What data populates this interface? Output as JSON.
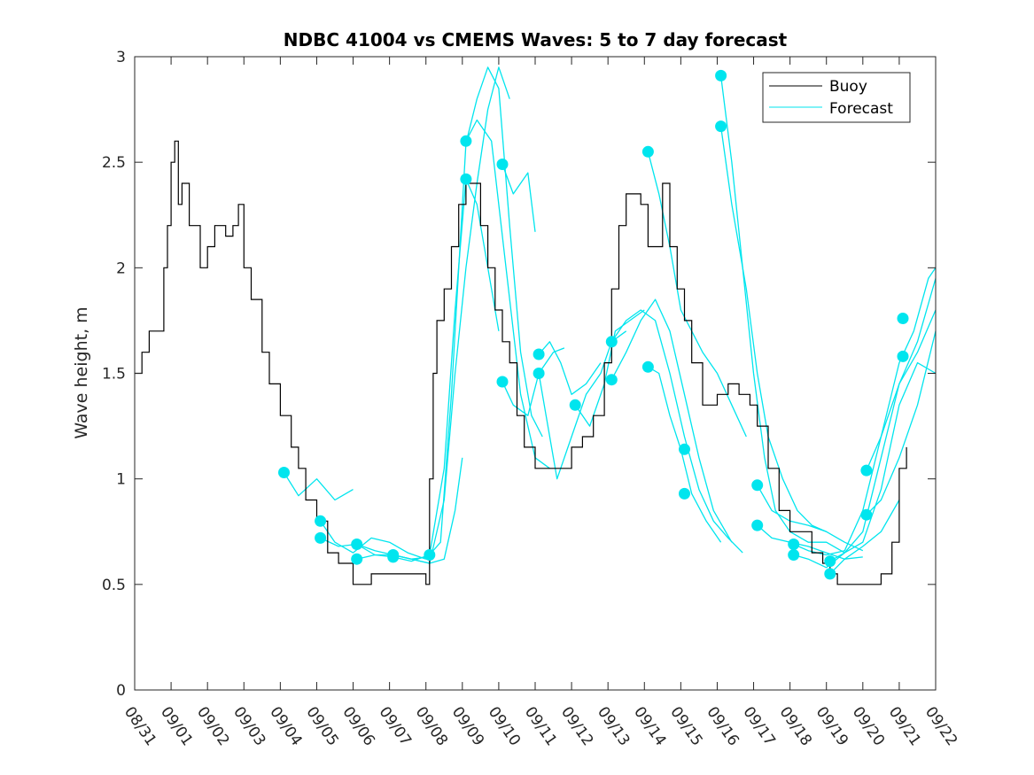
{
  "chart_data": {
    "type": "line",
    "title": "NDBC 41004 vs CMEMS Waves: 5 to 7 day forecast",
    "xlabel": "",
    "ylabel": "Wave height, m",
    "xlim": [
      0,
      22
    ],
    "ylim": [
      0,
      3
    ],
    "yticks": [
      0,
      0.5,
      1,
      1.5,
      2,
      2.5,
      3
    ],
    "ytick_labels": [
      "0",
      "0.5",
      "1",
      "1.5",
      "2",
      "2.5",
      "3"
    ],
    "xticks": [
      0,
      1,
      2,
      3,
      4,
      5,
      6,
      7,
      8,
      9,
      10,
      11,
      12,
      13,
      14,
      15,
      16,
      17,
      18,
      19,
      20,
      21,
      22
    ],
    "xtick_labels": [
      "08/31",
      "09/01",
      "09/02",
      "09/03",
      "09/04",
      "09/05",
      "09/06",
      "09/07",
      "09/08",
      "09/09",
      "09/10",
      "09/11",
      "09/12",
      "09/13",
      "09/14",
      "09/15",
      "09/16",
      "09/17",
      "09/18",
      "09/19",
      "09/20",
      "09/21",
      "09/22"
    ],
    "legend": {
      "position": "top-right",
      "entries": [
        "Buoy",
        "Forecast"
      ]
    },
    "colors": {
      "buoy": "#000000",
      "forecast": "#00e5ee"
    },
    "series": [
      {
        "name": "Buoy",
        "color": "#000000",
        "x": [
          0,
          0.2,
          0.4,
          0.6,
          0.8,
          0.9,
          1.0,
          1.1,
          1.2,
          1.3,
          1.5,
          1.8,
          2.0,
          2.2,
          2.5,
          2.7,
          2.85,
          3.0,
          3.2,
          3.5,
          3.7,
          4.0,
          4.3,
          4.5,
          4.7,
          5.0,
          5.3,
          5.6,
          6.0,
          6.5,
          7.0,
          7.5,
          8.0,
          8.1,
          8.2,
          8.3,
          8.5,
          8.7,
          8.9,
          9.1,
          9.3,
          9.5,
          9.7,
          9.9,
          10.1,
          10.3,
          10.5,
          10.7,
          11.0,
          11.3,
          11.6,
          12.0,
          12.3,
          12.6,
          12.9,
          13.1,
          13.3,
          13.5,
          13.7,
          13.9,
          14.1,
          14.3,
          14.5,
          14.7,
          14.9,
          15.1,
          15.3,
          15.6,
          16.0,
          16.3,
          16.6,
          16.9,
          17.1,
          17.4,
          17.7,
          18.0,
          18.3,
          18.6,
          18.9,
          19.1,
          19.3,
          19.6,
          19.9,
          20.2,
          20.5,
          20.8,
          21.0,
          21.2
        ],
        "values": [
          1.5,
          1.6,
          1.7,
          1.7,
          2.0,
          2.2,
          2.5,
          2.6,
          2.3,
          2.4,
          2.2,
          2.0,
          2.1,
          2.2,
          2.15,
          2.2,
          2.3,
          2.0,
          1.85,
          1.6,
          1.45,
          1.3,
          1.15,
          1.05,
          0.9,
          0.8,
          0.65,
          0.6,
          0.5,
          0.55,
          0.55,
          0.55,
          0.5,
          1.0,
          1.5,
          1.75,
          1.9,
          2.1,
          2.3,
          2.4,
          2.4,
          2.2,
          2.0,
          1.8,
          1.65,
          1.55,
          1.3,
          1.15,
          1.05,
          1.05,
          1.05,
          1.15,
          1.2,
          1.3,
          1.55,
          1.9,
          2.2,
          2.35,
          2.35,
          2.3,
          2.1,
          2.1,
          2.4,
          2.1,
          1.9,
          1.75,
          1.55,
          1.35,
          1.4,
          1.45,
          1.4,
          1.35,
          1.25,
          1.05,
          0.85,
          0.75,
          0.75,
          0.65,
          0.6,
          0.55,
          0.5,
          0.5,
          0.5,
          0.5,
          0.55,
          0.7,
          1.05,
          1.15
        ]
      },
      {
        "name": "Forecast",
        "color": "#00e5ee",
        "segments": [
          {
            "x": [
              4.1,
              4.5,
              5.0,
              5.5,
              6.0
            ],
            "values": [
              1.03,
              0.92,
              1.0,
              0.9,
              0.95
            ]
          },
          {
            "x": [
              5.1,
              5.5,
              6.0,
              6.5,
              7.0,
              7.5,
              8.0
            ],
            "values": [
              0.8,
              0.7,
              0.65,
              0.72,
              0.7,
              0.65,
              0.62
            ]
          },
          {
            "x": [
              5.1,
              5.6,
              6.1,
              6.6,
              7.1,
              7.6,
              8.1
            ],
            "values": [
              0.72,
              0.68,
              0.69,
              0.64,
              0.64,
              0.62,
              0.63
            ]
          },
          {
            "x": [
              6.1,
              6.6,
              7.1,
              7.6,
              8.1,
              8.5,
              8.8,
              9.0
            ],
            "values": [
              0.69,
              0.66,
              0.64,
              0.62,
              0.6,
              0.62,
              0.85,
              1.1
            ]
          },
          {
            "x": [
              6.1,
              6.6,
              7.1,
              7.6,
              8.1,
              8.5,
              8.8,
              9.1,
              9.4,
              9.7,
              10.0
            ],
            "values": [
              0.62,
              0.64,
              0.63,
              0.61,
              0.64,
              1.05,
              1.8,
              2.42,
              2.3,
              2.0,
              1.7
            ]
          },
          {
            "x": [
              7.1,
              7.6,
              8.1,
              8.5,
              8.8,
              9.1,
              9.4,
              9.7,
              10.0,
              10.3
            ],
            "values": [
              0.64,
              0.62,
              0.6,
              0.9,
              1.5,
              2.0,
              2.4,
              2.75,
              2.95,
              2.8
            ]
          },
          {
            "x": [
              8.1,
              8.4,
              8.7,
              9.1,
              9.4,
              9.7,
              10.0,
              10.3,
              10.6,
              10.9,
              11.2
            ],
            "values": [
              0.64,
              0.7,
              1.4,
              2.59,
              2.8,
              2.95,
              2.85,
              2.2,
              1.6,
              1.3,
              1.2
            ]
          },
          {
            "x": [
              9.1,
              9.4,
              9.8,
              10.2,
              10.6,
              11.0,
              11.4
            ],
            "values": [
              2.6,
              2.7,
              2.6,
              2.0,
              1.4,
              1.1,
              1.05
            ]
          },
          {
            "x": [
              10.1,
              10.4,
              10.8,
              11.0
            ],
            "values": [
              2.49,
              2.35,
              2.45,
              2.17
            ]
          },
          {
            "x": [
              10.1,
              10.4,
              10.8,
              11.1,
              11.5,
              11.8
            ],
            "values": [
              1.46,
              1.35,
              1.3,
              1.5,
              1.6,
              1.62
            ]
          },
          {
            "x": [
              11.1,
              11.4,
              11.7,
              12.0,
              12.4,
              12.8
            ],
            "values": [
              1.59,
              1.65,
              1.55,
              1.4,
              1.45,
              1.55
            ]
          },
          {
            "x": [
              11.1,
              11.3,
              11.6,
              12.0,
              12.4,
              12.8,
              13.1,
              13.5
            ],
            "values": [
              1.5,
              1.3,
              1.0,
              1.2,
              1.4,
              1.5,
              1.65,
              1.7
            ]
          },
          {
            "x": [
              12.1,
              12.5,
              12.9,
              13.2,
              13.6,
              14.0
            ],
            "values": [
              1.35,
              1.25,
              1.45,
              1.7,
              1.75,
              1.8
            ]
          },
          {
            "x": [
              13.1,
              13.5,
              13.9,
              14.3,
              14.7,
              15.1,
              15.5,
              15.9,
              16.3,
              16.7
            ],
            "values": [
              1.65,
              1.75,
              1.8,
              1.75,
              1.5,
              1.2,
              0.95,
              0.8,
              0.72,
              0.65
            ]
          },
          {
            "x": [
              13.1,
              13.5,
              13.9,
              14.3,
              14.7,
              15.1,
              15.5,
              15.9,
              16.4
            ],
            "values": [
              1.47,
              1.6,
              1.75,
              1.85,
              1.7,
              1.4,
              1.1,
              0.85,
              0.7
            ]
          },
          {
            "x": [
              14.1,
              14.4,
              14.7,
              15.0,
              15.3,
              15.6,
              16.0,
              16.4,
              16.8
            ],
            "values": [
              2.55,
              2.35,
              2.1,
              1.8,
              1.7,
              1.6,
              1.5,
              1.35,
              1.2
            ]
          },
          {
            "x": [
              14.1,
              14.4,
              14.7,
              15.0,
              15.3,
              15.7,
              16.1
            ],
            "values": [
              1.53,
              1.5,
              1.3,
              1.14,
              0.93,
              0.8,
              0.7
            ]
          },
          {
            "x": [
              16.1,
              16.4,
              16.7,
              17.0,
              17.3,
              17.6,
              18.0,
              18.5,
              19.0,
              19.5
            ],
            "values": [
              2.91,
              2.5,
              2.0,
              1.5,
              1.1,
              0.85,
              0.75,
              0.7,
              0.7,
              0.65
            ]
          },
          {
            "x": [
              16.1,
              16.4,
              16.8,
              17.1,
              17.4,
              17.8,
              18.2,
              18.6,
              19.0
            ],
            "values": [
              2.67,
              2.3,
              1.9,
              1.5,
              1.2,
              1.0,
              0.85,
              0.78,
              0.75
            ]
          },
          {
            "x": [
              17.1,
              17.5,
              18.0,
              18.5,
              19.0,
              19.5,
              20.0
            ],
            "values": [
              0.97,
              0.85,
              0.8,
              0.78,
              0.75,
              0.7,
              0.66
            ]
          },
          {
            "x": [
              17.1,
              17.5,
              18.0,
              18.5,
              19.0,
              19.5,
              20.0
            ],
            "values": [
              0.78,
              0.72,
              0.7,
              0.68,
              0.65,
              0.62,
              0.63
            ]
          },
          {
            "x": [
              18.1,
              18.5,
              19.0,
              19.5,
              20.0,
              20.5,
              21.0,
              21.4,
              21.8,
              22.0
            ],
            "values": [
              0.69,
              0.66,
              0.64,
              0.66,
              0.85,
              1.2,
              1.55,
              1.7,
              1.95,
              2.0
            ]
          },
          {
            "x": [
              18.1,
              18.5,
              19.0,
              19.5,
              20.0,
              20.5,
              21.0,
              21.5,
              22.0
            ],
            "values": [
              0.64,
              0.62,
              0.58,
              0.65,
              0.75,
              1.1,
              1.45,
              1.6,
              1.8
            ]
          },
          {
            "x": [
              19.1,
              19.5,
              20.0,
              20.5,
              21.0,
              21.5,
              22.0
            ],
            "values": [
              0.61,
              0.65,
              0.7,
              0.95,
              1.35,
              1.55,
              1.5
            ]
          },
          {
            "x": [
              19.1,
              19.5,
              20.0,
              20.5,
              21.0
            ],
            "values": [
              0.55,
              0.62,
              0.68,
              0.75,
              0.9
            ]
          },
          {
            "x": [
              20.1,
              20.5,
              21.0,
              21.5,
              22.0
            ],
            "values": [
              1.04,
              1.2,
              1.45,
              1.65,
              1.95
            ]
          },
          {
            "x": [
              20.1,
              20.5,
              21.0,
              21.5,
              22.0
            ],
            "values": [
              0.83,
              0.9,
              1.1,
              1.35,
              1.7
            ]
          }
        ],
        "markers": {
          "x": [
            4.1,
            5.1,
            5.1,
            6.1,
            6.1,
            7.1,
            7.1,
            8.1,
            9.1,
            9.1,
            10.1,
            10.1,
            11.1,
            11.1,
            12.1,
            13.1,
            13.1,
            14.1,
            14.1,
            15.1,
            15.1,
            16.1,
            16.1,
            17.1,
            17.1,
            18.1,
            18.1,
            19.1,
            19.1,
            20.1,
            20.1,
            21.1,
            21.1
          ],
          "values": [
            1.03,
            0.8,
            0.72,
            0.69,
            0.62,
            0.64,
            0.63,
            0.64,
            2.6,
            2.42,
            2.49,
            1.46,
            1.59,
            1.5,
            1.35,
            1.65,
            1.47,
            2.55,
            1.53,
            1.14,
            0.93,
            2.91,
            2.67,
            0.97,
            0.78,
            0.69,
            0.64,
            0.61,
            0.55,
            1.04,
            0.83,
            1.76,
            1.58
          ]
        }
      }
    ]
  }
}
